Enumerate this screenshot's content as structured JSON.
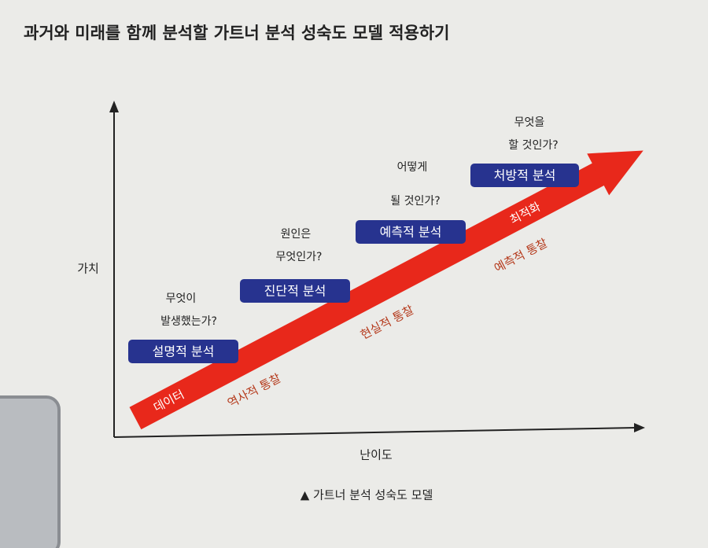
{
  "title": "과거와 미래를 함께 분석할 가트너 분석 성숙도 모델 적용하기",
  "axes": {
    "y_label": "가치",
    "x_label": "난이도"
  },
  "stages": [
    {
      "name": "설명적 분석",
      "question": [
        "무엇이",
        "발생했는가?"
      ]
    },
    {
      "name": "진단적 분석",
      "question": [
        "원인은",
        "무엇인가?"
      ]
    },
    {
      "name": "예측적 분석",
      "question": [
        "어떻게",
        "될 것인가?"
      ]
    },
    {
      "name": "처방적 분석",
      "question": [
        "무엇을",
        "할 것인가?"
      ]
    }
  ],
  "arrow": {
    "start_label": "데이터",
    "end_label": "최적화"
  },
  "insights": [
    "역사적 통찰",
    "현실적 통찰",
    "예측적 통찰"
  ],
  "caption": "▲ 가트너 분석 성숙도 모델"
}
